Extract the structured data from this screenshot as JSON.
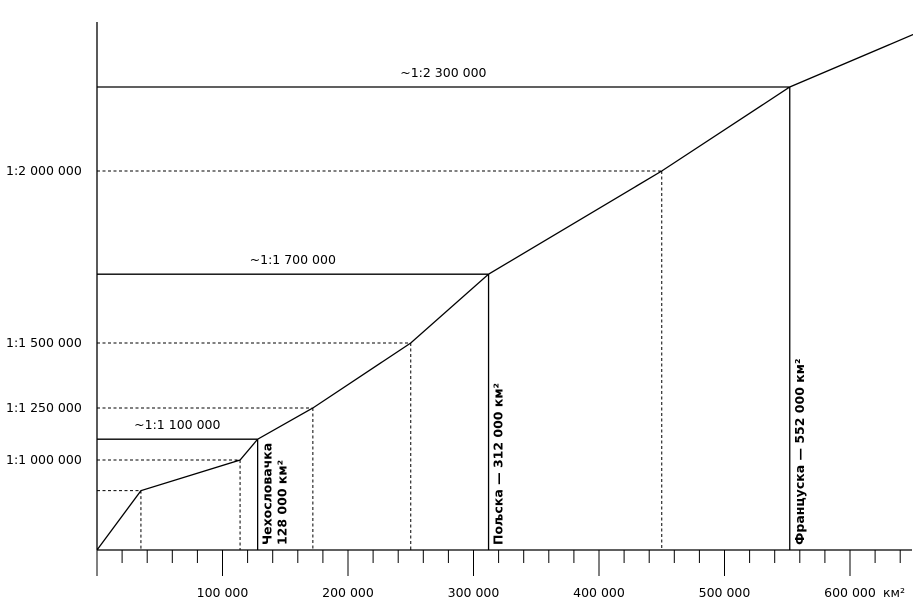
{
  "chart_data": {
    "type": "line",
    "title": "",
    "xlabel": "",
    "ylabel": "",
    "x_unit": "км²",
    "xlim": [
      0,
      700000
    ],
    "x_ticks": [
      {
        "value": 100000,
        "label": "100 000"
      },
      {
        "value": 200000,
        "label": "200 000"
      },
      {
        "value": 300000,
        "label": "300 000"
      },
      {
        "value": 400000,
        "label": "400 000"
      },
      {
        "value": 500000,
        "label": "500 000"
      },
      {
        "value": 600000,
        "label": "600 000"
      }
    ],
    "x_unit_label": "км²",
    "x_minor_step": 20000,
    "y_ticks": [
      {
        "denominator": 1000000,
        "label": "1:1 000 000"
      },
      {
        "denominator": 1250000,
        "label": "1:1 250 000"
      },
      {
        "denominator": 1500000,
        "label": "1:1 500 000"
      },
      {
        "denominator": 2000000,
        "label": "1:2 000 000"
      }
    ],
    "reference_points": [
      {
        "area": 35000,
        "denominator": 850000,
        "style": "dashed",
        "label": ""
      },
      {
        "area": 114000,
        "denominator": 1000000,
        "style": "dashed",
        "label": ""
      },
      {
        "area": 172000,
        "denominator": 1250000,
        "style": "dashed",
        "label": ""
      },
      {
        "area": 250000,
        "denominator": 1500000,
        "style": "dashed",
        "label": ""
      },
      {
        "area": 450000,
        "denominator": 2000000,
        "style": "dashed",
        "label": ""
      }
    ],
    "countries": [
      {
        "area": 128000,
        "denominator": 1100000,
        "scale_label": "~1:1 100 000",
        "name_label": "Чехословачка",
        "area_label": "128 000 км²"
      },
      {
        "area": 312000,
        "denominator": 1700000,
        "scale_label": "~1:1 700 000",
        "name_label": "Пољска — 312 000 км²"
      },
      {
        "area": 552000,
        "denominator": 2300000,
        "scale_label": "~1:2 300 000",
        "name_label": "Француска — 552 000 км²"
      }
    ],
    "curve": [
      {
        "area": 0,
        "denominator": 560000
      },
      {
        "area": 35000,
        "denominator": 850000
      },
      {
        "area": 114000,
        "denominator": 1000000
      },
      {
        "area": 128000,
        "denominator": 1100000
      },
      {
        "area": 172000,
        "denominator": 1250000
      },
      {
        "area": 250000,
        "denominator": 1500000
      },
      {
        "area": 312000,
        "denominator": 1700000
      },
      {
        "area": 450000,
        "denominator": 2000000
      },
      {
        "area": 552000,
        "denominator": 2300000
      },
      {
        "area": 700000,
        "denominator": 2600000
      }
    ]
  }
}
